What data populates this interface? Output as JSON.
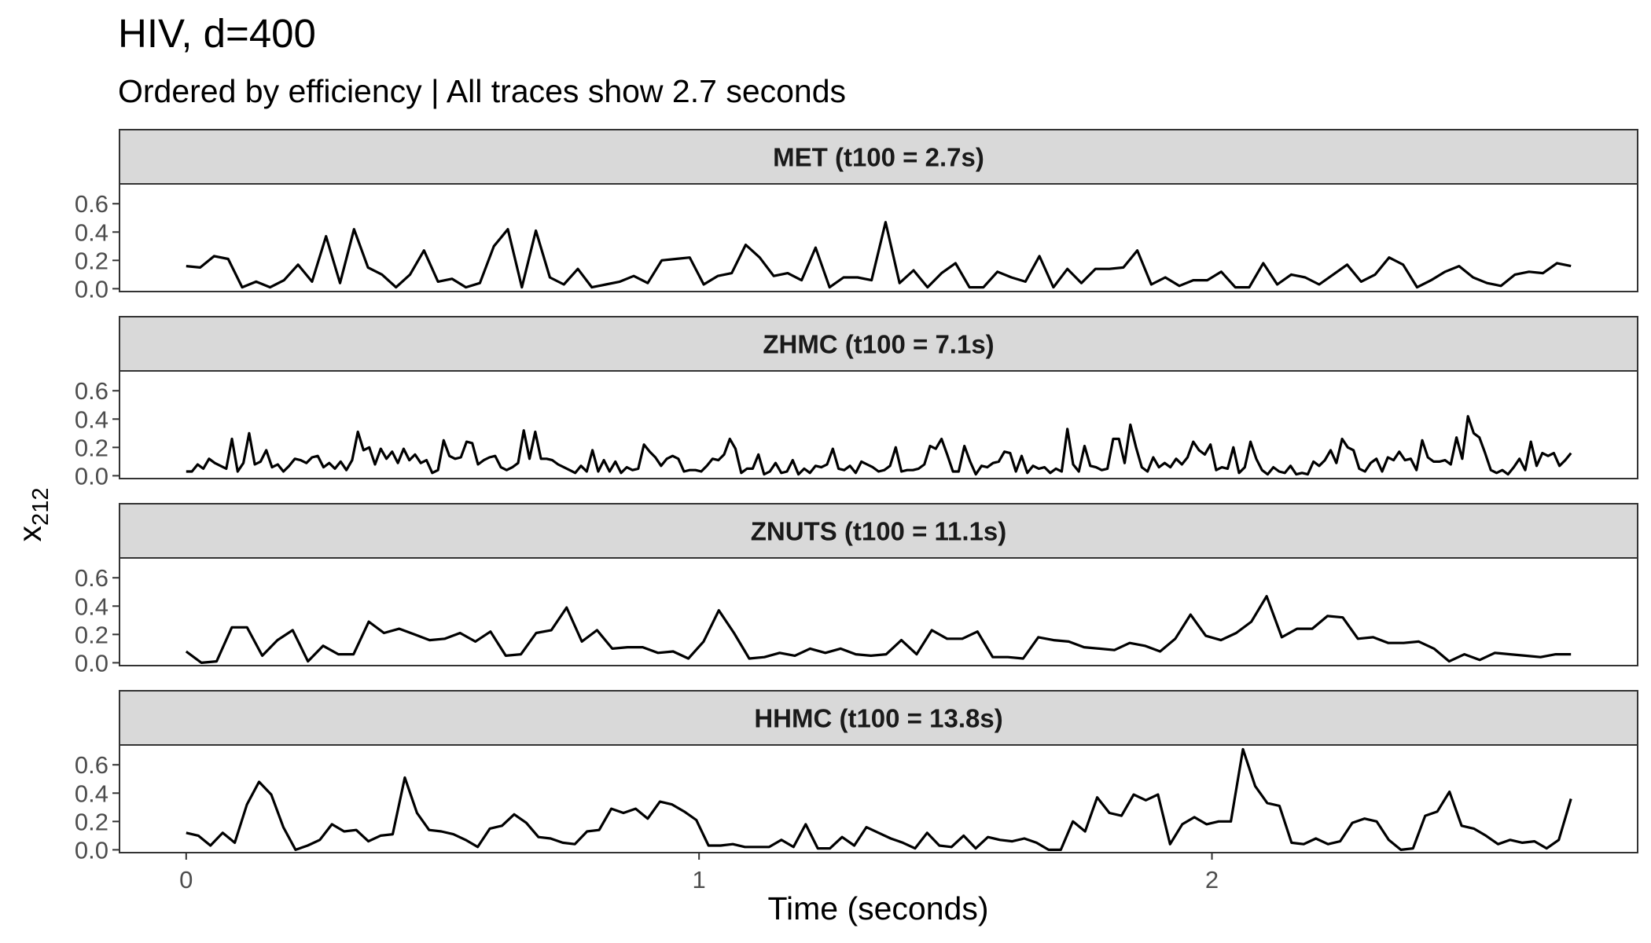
{
  "chart_data": {
    "type": "line",
    "title": "HIV, d=400",
    "subtitle": "Ordered by efficiency | All traces show 2.7 seconds",
    "xlabel": "Time (seconds)",
    "ylabel_base": "x",
    "ylabel_sub": "212",
    "xlim": [
      -0.13,
      2.83
    ],
    "ylim": [
      -0.02,
      0.74
    ],
    "x_ticks": [
      0,
      1,
      2
    ],
    "x_tick_labels": [
      "0",
      "1",
      "2"
    ],
    "y_ticks": [
      0.0,
      0.2,
      0.4,
      0.6
    ],
    "y_tick_labels": [
      "0.0",
      "0.2",
      "0.4",
      "0.6"
    ],
    "grid": false,
    "line_color": "#000000",
    "panels": [
      {
        "label": "MET (t100 = 2.7s)",
        "x_start": 0,
        "x_end": 2.7,
        "values": [
          0.16,
          0.15,
          0.23,
          0.21,
          0.01,
          0.05,
          0.01,
          0.06,
          0.17,
          0.05,
          0.37,
          0.04,
          0.42,
          0.15,
          0.1,
          0.01,
          0.1,
          0.27,
          0.05,
          0.07,
          0.01,
          0.04,
          0.3,
          0.42,
          0.01,
          0.41,
          0.08,
          0.03,
          0.14,
          0.01,
          0.03,
          0.05,
          0.09,
          0.04,
          0.2,
          0.21,
          0.22,
          0.03,
          0.09,
          0.11,
          0.31,
          0.22,
          0.09,
          0.11,
          0.06,
          0.29,
          0.01,
          0.08,
          0.08,
          0.06,
          0.47,
          0.04,
          0.13,
          0.01,
          0.11,
          0.18,
          0.01,
          0.01,
          0.12,
          0.08,
          0.05,
          0.23,
          0.01,
          0.14,
          0.04,
          0.14,
          0.14,
          0.15,
          0.27,
          0.03,
          0.08,
          0.02,
          0.06,
          0.06,
          0.12,
          0.01,
          0.01,
          0.18,
          0.03,
          0.1,
          0.08,
          0.03,
          0.1,
          0.17,
          0.05,
          0.1,
          0.22,
          0.17,
          0.01,
          0.06,
          0.12,
          0.16,
          0.08,
          0.04,
          0.02,
          0.1,
          0.12,
          0.11,
          0.18,
          0.16
        ]
      },
      {
        "label": "ZHMC (t100 = 7.1s)",
        "x_start": 0,
        "x_end": 2.7,
        "values": [
          0.03,
          0.03,
          0.08,
          0.05,
          0.12,
          0.09,
          0.07,
          0.05,
          0.26,
          0.03,
          0.09,
          0.3,
          0.08,
          0.1,
          0.18,
          0.06,
          0.08,
          0.03,
          0.07,
          0.12,
          0.11,
          0.09,
          0.13,
          0.14,
          0.06,
          0.09,
          0.05,
          0.1,
          0.04,
          0.11,
          0.31,
          0.18,
          0.2,
          0.08,
          0.19,
          0.12,
          0.17,
          0.09,
          0.19,
          0.11,
          0.15,
          0.09,
          0.11,
          0.02,
          0.04,
          0.25,
          0.14,
          0.12,
          0.13,
          0.24,
          0.23,
          0.08,
          0.11,
          0.13,
          0.14,
          0.06,
          0.04,
          0.06,
          0.09,
          0.32,
          0.12,
          0.31,
          0.12,
          0.12,
          0.11,
          0.08,
          0.06,
          0.04,
          0.02,
          0.07,
          0.03,
          0.18,
          0.03,
          0.11,
          0.03,
          0.1,
          0.02,
          0.06,
          0.04,
          0.05,
          0.22,
          0.17,
          0.13,
          0.07,
          0.12,
          0.14,
          0.12,
          0.03,
          0.04,
          0.04,
          0.03,
          0.07,
          0.12,
          0.11,
          0.15,
          0.26,
          0.19,
          0.02,
          0.05,
          0.05,
          0.15,
          0.01,
          0.03,
          0.09,
          0.02,
          0.03,
          0.11,
          0.01,
          0.05,
          0.02,
          0.07,
          0.06,
          0.08,
          0.19,
          0.05,
          0.04,
          0.07,
          0.02,
          0.1,
          0.08,
          0.06,
          0.03,
          0.04,
          0.07,
          0.2,
          0.03,
          0.04,
          0.04,
          0.05,
          0.08,
          0.21,
          0.19,
          0.26,
          0.15,
          0.03,
          0.03,
          0.21,
          0.1,
          0.01,
          0.07,
          0.06,
          0.09,
          0.1,
          0.17,
          0.16,
          0.03,
          0.14,
          0.02,
          0.07,
          0.05,
          0.06,
          0.02,
          0.05,
          0.03,
          0.33,
          0.08,
          0.03,
          0.21,
          0.07,
          0.06,
          0.04,
          0.05,
          0.26,
          0.26,
          0.09,
          0.36,
          0.2,
          0.06,
          0.03,
          0.13,
          0.06,
          0.09,
          0.06,
          0.12,
          0.08,
          0.13,
          0.24,
          0.18,
          0.15,
          0.22,
          0.04,
          0.06,
          0.05,
          0.2,
          0.02,
          0.06,
          0.24,
          0.12,
          0.04,
          0.01,
          0.06,
          0.03,
          0.02,
          0.07,
          0.01,
          0.02,
          0.01,
          0.1,
          0.07,
          0.11,
          0.18,
          0.09,
          0.26,
          0.2,
          0.18,
          0.05,
          0.03,
          0.09,
          0.12,
          0.03,
          0.13,
          0.11,
          0.17,
          0.11,
          0.12,
          0.04,
          0.25,
          0.13,
          0.1,
          0.1,
          0.11,
          0.08,
          0.27,
          0.12,
          0.42,
          0.3,
          0.27,
          0.16,
          0.04,
          0.02,
          0.04,
          0.01,
          0.06,
          0.12,
          0.04,
          0.24,
          0.07,
          0.16,
          0.14,
          0.16,
          0.07,
          0.11,
          0.16
        ]
      },
      {
        "label": "ZNUTS (t100 = 11.1s)",
        "x_start": 0,
        "x_end": 2.7,
        "values": [
          0.08,
          0.0,
          0.01,
          0.25,
          0.25,
          0.05,
          0.16,
          0.23,
          0.01,
          0.12,
          0.06,
          0.06,
          0.29,
          0.21,
          0.24,
          0.2,
          0.16,
          0.17,
          0.21,
          0.15,
          0.22,
          0.05,
          0.06,
          0.21,
          0.23,
          0.39,
          0.15,
          0.23,
          0.1,
          0.11,
          0.11,
          0.07,
          0.08,
          0.03,
          0.15,
          0.37,
          0.21,
          0.03,
          0.04,
          0.07,
          0.05,
          0.1,
          0.07,
          0.1,
          0.06,
          0.05,
          0.06,
          0.16,
          0.06,
          0.23,
          0.17,
          0.17,
          0.22,
          0.04,
          0.04,
          0.03,
          0.18,
          0.16,
          0.15,
          0.11,
          0.1,
          0.09,
          0.14,
          0.12,
          0.08,
          0.17,
          0.34,
          0.19,
          0.16,
          0.21,
          0.29,
          0.47,
          0.18,
          0.24,
          0.24,
          0.33,
          0.32,
          0.17,
          0.18,
          0.14,
          0.14,
          0.15,
          0.1,
          0.01,
          0.06,
          0.02,
          0.07,
          0.06,
          0.05,
          0.04,
          0.06,
          0.06
        ]
      },
      {
        "label": "HHMC (t100 = 13.8s)",
        "x_start": 0,
        "x_end": 2.7,
        "values": [
          0.12,
          0.1,
          0.03,
          0.12,
          0.05,
          0.32,
          0.48,
          0.39,
          0.16,
          0.0,
          0.03,
          0.07,
          0.18,
          0.13,
          0.14,
          0.06,
          0.1,
          0.11,
          0.51,
          0.26,
          0.14,
          0.13,
          0.11,
          0.07,
          0.02,
          0.15,
          0.17,
          0.25,
          0.19,
          0.09,
          0.08,
          0.05,
          0.04,
          0.13,
          0.14,
          0.29,
          0.26,
          0.29,
          0.22,
          0.34,
          0.32,
          0.27,
          0.21,
          0.03,
          0.03,
          0.04,
          0.02,
          0.02,
          0.02,
          0.07,
          0.02,
          0.18,
          0.01,
          0.01,
          0.09,
          0.03,
          0.16,
          0.12,
          0.08,
          0.05,
          0.01,
          0.12,
          0.03,
          0.02,
          0.1,
          0.01,
          0.09,
          0.07,
          0.06,
          0.08,
          0.05,
          0.0,
          0.0,
          0.2,
          0.13,
          0.37,
          0.26,
          0.24,
          0.39,
          0.35,
          0.39,
          0.04,
          0.18,
          0.23,
          0.18,
          0.2,
          0.2,
          0.71,
          0.45,
          0.33,
          0.31,
          0.05,
          0.04,
          0.08,
          0.04,
          0.06,
          0.19,
          0.22,
          0.2,
          0.07,
          0.0,
          0.01,
          0.24,
          0.27,
          0.41,
          0.17,
          0.15,
          0.1,
          0.04,
          0.07,
          0.05,
          0.06,
          0.01,
          0.07,
          0.36
        ]
      }
    ]
  }
}
